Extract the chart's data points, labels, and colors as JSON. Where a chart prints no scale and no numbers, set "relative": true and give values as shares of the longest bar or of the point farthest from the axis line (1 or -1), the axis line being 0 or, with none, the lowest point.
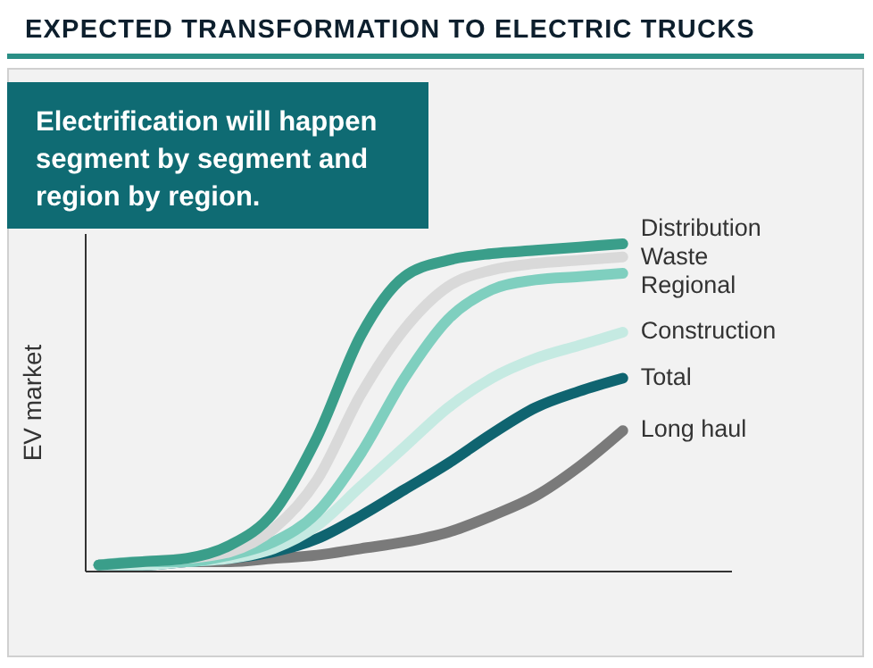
{
  "chart_data": {
    "type": "line",
    "title": "EXPECTED TRANSFORMATION TO ELECTRIC TRUCKS",
    "ylabel": "EV market",
    "relative": true,
    "grid": false,
    "legend": false,
    "marker": "none",
    "line_style": "solid",
    "annotations": [
      "Electrification will happen segment by segment and region by region."
    ],
    "categories": [
      null,
      null,
      null,
      null,
      null,
      null,
      null,
      null,
      null,
      null,
      null,
      null,
      null
    ],
    "series": [
      {
        "name": "Long haul",
        "color": "#7a7a7a",
        "values": [
          0.02,
          0.02,
          0.03,
          0.03,
          0.04,
          0.05,
          0.07,
          0.09,
          0.12,
          0.17,
          0.23,
          0.32,
          0.43
        ]
      },
      {
        "name": "Total",
        "color": "#0f6470",
        "values": [
          0.02,
          0.02,
          0.03,
          0.04,
          0.06,
          0.1,
          0.17,
          0.25,
          0.33,
          0.42,
          0.5,
          0.55,
          0.59
        ]
      },
      {
        "name": "Construction",
        "color": "#c5eae2",
        "values": [
          0.02,
          0.02,
          0.03,
          0.04,
          0.07,
          0.14,
          0.26,
          0.38,
          0.5,
          0.59,
          0.65,
          0.69,
          0.73
        ]
      },
      {
        "name": "Regional",
        "color": "#7fcfbf",
        "values": [
          0.02,
          0.03,
          0.03,
          0.05,
          0.09,
          0.18,
          0.36,
          0.59,
          0.77,
          0.86,
          0.89,
          0.9,
          0.91
        ]
      },
      {
        "name": "Waste",
        "color": "#d9d9d9",
        "values": [
          0.02,
          0.03,
          0.04,
          0.06,
          0.13,
          0.28,
          0.54,
          0.74,
          0.87,
          0.92,
          0.94,
          0.95,
          0.96
        ]
      },
      {
        "name": "Distribution",
        "color": "#3a9e8a",
        "values": [
          0.02,
          0.03,
          0.04,
          0.08,
          0.18,
          0.41,
          0.72,
          0.9,
          0.95,
          0.97,
          0.98,
          0.99,
          1
        ]
      }
    ]
  }
}
